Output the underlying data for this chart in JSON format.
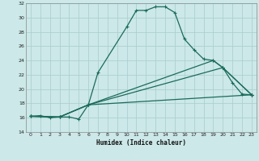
{
  "title": "",
  "xlabel": "Humidex (Indice chaleur)",
  "background_color": "#cce8e8",
  "line_color": "#1a6b5a",
  "grid_color": "#a8cccc",
  "xlim": [
    -0.5,
    23.5
  ],
  "ylim": [
    14,
    32
  ],
  "xticks": [
    0,
    1,
    2,
    3,
    4,
    5,
    6,
    7,
    8,
    9,
    10,
    11,
    12,
    13,
    14,
    15,
    16,
    17,
    18,
    19,
    20,
    21,
    22,
    23
  ],
  "yticks": [
    14,
    16,
    18,
    20,
    22,
    24,
    26,
    28,
    30,
    32
  ],
  "series": [
    {
      "x": [
        0,
        1,
        2,
        3,
        4,
        5,
        6,
        7,
        10,
        11,
        12,
        13,
        14,
        15,
        16,
        17,
        18,
        19,
        20,
        21,
        22,
        23
      ],
      "y": [
        16.2,
        16.3,
        16.0,
        16.1,
        16.1,
        15.8,
        17.8,
        22.3,
        28.7,
        31.0,
        31.0,
        31.5,
        31.5,
        30.7,
        27.0,
        25.5,
        24.2,
        24.0,
        23.0,
        20.9,
        19.3,
        19.2
      ]
    },
    {
      "x": [
        0,
        3,
        6,
        23
      ],
      "y": [
        16.2,
        16.1,
        17.8,
        19.2
      ]
    },
    {
      "x": [
        0,
        3,
        6,
        20,
        23
      ],
      "y": [
        16.2,
        16.1,
        17.8,
        23.0,
        19.2
      ]
    },
    {
      "x": [
        0,
        3,
        6,
        19,
        20,
        23
      ],
      "y": [
        16.2,
        16.1,
        17.8,
        24.0,
        23.0,
        19.2
      ]
    }
  ]
}
